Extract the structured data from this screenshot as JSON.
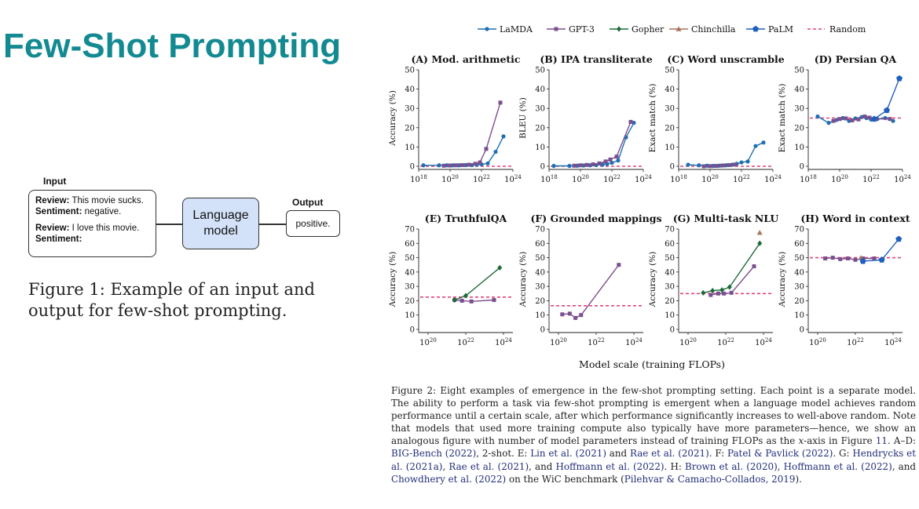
{
  "slide": {
    "title": "Few-Shot Prompting"
  },
  "diagram": {
    "input_label": "Input",
    "output_label": "Output",
    "review_key": "Review:",
    "sentiment_key": "Sentiment:",
    "review1": " This movie sucks.",
    "sentiment1": " negative.",
    "review2": " I love this movie.",
    "sentiment2": "",
    "model_line1": "Language",
    "model_line2": "model",
    "output_value": "positive."
  },
  "figure1_caption": "Figure 1: Example of an input and output for few-shot prompting.",
  "figure2": {
    "xlabel": "Model scale (training FLOPs)",
    "caption_parts": [
      {
        "t": "Figure 2: Eight examples of emergence in the few-shot prompting setting. Each point is a separate model. The ability to perform a task via few-shot prompting is emergent when a language model achieves random performance until a certain scale, after which performance significantly increases to well-above random. Note that models that used more training compute also typically have more parameters—hence, we show an analogous figure with number of model parameters instead of training FLOPs as the "
      },
      {
        "t": "x",
        "i": true
      },
      {
        "t": "-axis in Figure "
      },
      {
        "t": "11",
        "c": true
      },
      {
        "t": ". A–D: "
      },
      {
        "t": "BIG-Bench (2022)",
        "c": true
      },
      {
        "t": ", 2-shot. E: "
      },
      {
        "t": "Lin et al. (2021)",
        "c": true
      },
      {
        "t": " and "
      },
      {
        "t": "Rae et al. (2021)",
        "c": true
      },
      {
        "t": ". F: "
      },
      {
        "t": "Patel & Pavlick (2022)",
        "c": true
      },
      {
        "t": ". G: "
      },
      {
        "t": "Hendrycks et al. (2021a)",
        "c": true
      },
      {
        "t": ", "
      },
      {
        "t": "Rae et al. (2021)",
        "c": true
      },
      {
        "t": ", and "
      },
      {
        "t": "Hoffmann et al. (2022)",
        "c": true
      },
      {
        "t": ". H: "
      },
      {
        "t": "Brown et al. (2020)",
        "c": true
      },
      {
        "t": ", "
      },
      {
        "t": "Hoffmann et al. (2022)",
        "c": true
      },
      {
        "t": ", and "
      },
      {
        "t": "Chowdhery et al. (2022)",
        "c": true
      },
      {
        "t": " on the WiC benchmark ("
      },
      {
        "t": "Pilehvar & Camacho-Collados, 2019",
        "c": true
      },
      {
        "t": ")."
      }
    ]
  },
  "legend": [
    {
      "name": "LaMDA",
      "color": "#1f6fb2",
      "marker": "circle"
    },
    {
      "name": "GPT-3",
      "color": "#7b4f8e",
      "marker": "square"
    },
    {
      "name": "Gopher",
      "color": "#1e6b3a",
      "marker": "diamond"
    },
    {
      "name": "Chinchilla",
      "color": "#a5745a",
      "marker": "triangle"
    },
    {
      "name": "PaLM",
      "color": "#1f5fbf",
      "marker": "pentagon"
    },
    {
      "name": "Random",
      "color": "#e0457b",
      "marker": "dashed"
    }
  ],
  "chart_data": [
    {
      "type": "line",
      "title": "(A) Mod. arithmetic",
      "ylabel": "Accuracy (%)",
      "xlim": [
        18,
        24
      ],
      "ylim": [
        0,
        50
      ],
      "yticks": [
        0,
        10,
        20,
        30,
        40,
        50
      ],
      "xticks": [
        18,
        20,
        22,
        24
      ],
      "random": 0,
      "series": [
        {
          "name": "LaMDA",
          "x": [
            18.3,
            19.3,
            19.8,
            20.2,
            20.6,
            21.0,
            21.4,
            21.7,
            22.0,
            22.4,
            22.9,
            23.4
          ],
          "y": [
            0.5,
            0.5,
            0.5,
            0.5,
            0.5,
            0.6,
            0.6,
            0.8,
            1.0,
            1.5,
            7.5,
            15.5
          ]
        },
        {
          "name": "GPT-3",
          "x": [
            19.6,
            20.0,
            20.4,
            20.8,
            21.2,
            21.6,
            21.9,
            22.3,
            23.2
          ],
          "y": [
            0.3,
            0.4,
            0.5,
            0.6,
            0.8,
            1.3,
            2.0,
            9.0,
            33.0
          ]
        }
      ]
    },
    {
      "type": "line",
      "title": "(B) IPA transliterate",
      "ylabel": "BLEU (%)",
      "xlim": [
        18,
        24
      ],
      "ylim": [
        0,
        50
      ],
      "yticks": [
        0,
        10,
        20,
        30,
        40,
        50
      ],
      "xticks": [
        18,
        20,
        22,
        24
      ],
      "random": 0,
      "series": [
        {
          "name": "LaMDA",
          "x": [
            18.3,
            19.3,
            19.8,
            20.2,
            20.6,
            21.0,
            21.4,
            21.7,
            22.0,
            22.4,
            22.9,
            23.4
          ],
          "y": [
            0.2,
            0.2,
            0.3,
            0.4,
            0.5,
            0.6,
            0.8,
            1.2,
            1.8,
            3.0,
            15.0,
            22.5
          ]
        },
        {
          "name": "GPT-3",
          "x": [
            19.6,
            20.0,
            20.4,
            20.8,
            21.2,
            21.6,
            21.9,
            22.3,
            23.2
          ],
          "y": [
            0.3,
            0.5,
            0.7,
            1.0,
            1.5,
            2.5,
            3.5,
            5.0,
            23.0
          ]
        }
      ]
    },
    {
      "type": "line",
      "title": "(C) Word unscramble",
      "ylabel": "Exact match (%)",
      "xlim": [
        18,
        24
      ],
      "ylim": [
        0,
        50
      ],
      "yticks": [
        0,
        10,
        20,
        30,
        40,
        50
      ],
      "xticks": [
        18,
        20,
        22,
        24
      ],
      "random": 0,
      "series": [
        {
          "name": "LaMDA",
          "x": [
            18.6,
            19.3,
            19.8,
            20.2,
            20.6,
            21.0,
            21.4,
            21.7,
            22.0,
            22.4,
            22.9,
            23.4
          ],
          "y": [
            0.8,
            0.5,
            0.3,
            0.2,
            0.3,
            0.5,
            0.8,
            1.3,
            2.0,
            2.5,
            10.5,
            12.3
          ]
        },
        {
          "name": "GPT-3",
          "x": [
            19.6,
            20.0,
            20.4,
            20.8,
            21.2,
            21.6
          ],
          "y": [
            0.0,
            0.1,
            0.2,
            0.4,
            0.6,
            0.9
          ]
        }
      ]
    },
    {
      "type": "line",
      "title": "(D) Persian QA",
      "ylabel": "Exact match (%)",
      "xlim": [
        18,
        24
      ],
      "ylim": [
        0,
        50
      ],
      "yticks": [
        0,
        10,
        20,
        30,
        40,
        50
      ],
      "xticks": [
        18,
        20,
        22,
        24
      ],
      "random": 25,
      "series": [
        {
          "name": "LaMDA",
          "x": [
            18.6,
            19.3,
            19.8,
            20.2,
            20.6,
            21.0,
            21.4,
            21.7,
            22.0,
            22.4,
            22.9,
            23.4
          ],
          "y": [
            25.8,
            22.5,
            24.0,
            25.0,
            23.5,
            24.8,
            25.5,
            25.0,
            24.2,
            24.5,
            25.0,
            23.5
          ]
        },
        {
          "name": "GPT-3",
          "x": [
            19.6,
            20.0,
            20.4,
            20.8,
            21.2,
            21.6,
            21.9,
            22.3,
            23.2
          ],
          "y": [
            23.5,
            24.5,
            24.8,
            23.8,
            24.3,
            25.8,
            25.2,
            24.5,
            24.5
          ]
        },
        {
          "name": "PaLM",
          "x": [
            22.2,
            23.0,
            23.8
          ],
          "y": [
            24.5,
            29.0,
            45.5
          ]
        }
      ]
    },
    {
      "type": "line",
      "title": "(E) TruthfulQA",
      "ylabel": "Accuracy (%)",
      "xlim": [
        19.5,
        24.5
      ],
      "ylim": [
        0,
        70
      ],
      "yticks": [
        0,
        10,
        20,
        30,
        40,
        50,
        60,
        70
      ],
      "xticks": [
        20,
        22,
        24
      ],
      "random": 22.5,
      "series": [
        {
          "name": "GPT-3",
          "x": [
            21.4,
            21.8,
            22.3,
            23.5
          ],
          "y": [
            20.5,
            20.0,
            19.5,
            20.5
          ]
        },
        {
          "name": "Gopher",
          "x": [
            21.4,
            22.0,
            23.8
          ],
          "y": [
            20.5,
            23.5,
            43.0
          ]
        }
      ]
    },
    {
      "type": "line",
      "title": "(F) Grounded mappings",
      "ylabel": "Accuracy (%)",
      "xlim": [
        19.5,
        24.5
      ],
      "ylim": [
        0,
        70
      ],
      "yticks": [
        0,
        10,
        20,
        30,
        40,
        50,
        60,
        70
      ],
      "xticks": [
        20,
        22,
        24
      ],
      "random": 16.5,
      "series": [
        {
          "name": "GPT-3",
          "x": [
            20.2,
            20.6,
            20.9,
            21.2,
            23.2
          ],
          "y": [
            10.5,
            11.0,
            8.0,
            10.0,
            45.0
          ]
        }
      ]
    },
    {
      "type": "line",
      "title": "(G) Multi-task NLU",
      "ylabel": "Accuracy (%)",
      "xlim": [
        19.5,
        24.5
      ],
      "ylim": [
        0,
        70
      ],
      "yticks": [
        0,
        10,
        20,
        30,
        40,
        50,
        60,
        70
      ],
      "xticks": [
        20,
        22,
        24
      ],
      "random": 25,
      "series": [
        {
          "name": "GPT-3",
          "x": [
            21.2,
            21.6,
            21.9,
            22.3,
            23.5
          ],
          "y": [
            24.0,
            25.0,
            25.0,
            25.5,
            44.0
          ]
        },
        {
          "name": "Gopher",
          "x": [
            20.8,
            21.3,
            21.8,
            22.2,
            23.8
          ],
          "y": [
            25.5,
            27.0,
            27.5,
            29.5,
            60.0
          ]
        },
        {
          "name": "Chinchilla",
          "x": [
            23.8
          ],
          "y": [
            67.5
          ]
        }
      ]
    },
    {
      "type": "line",
      "title": "(H) Word in context",
      "ylabel": "Accuracy (%)",
      "xlim": [
        19.5,
        24.5
      ],
      "ylim": [
        0,
        70
      ],
      "yticks": [
        0,
        10,
        20,
        30,
        40,
        50,
        60,
        70
      ],
      "xticks": [
        20,
        22,
        24
      ],
      "random": 50,
      "series": [
        {
          "name": "GPT-3",
          "x": [
            20.4,
            20.8,
            21.2,
            21.6,
            22.0,
            22.4,
            23.0
          ],
          "y": [
            49.5,
            50.0,
            49.0,
            49.5,
            48.5,
            49.5,
            49.5
          ]
        },
        {
          "name": "Chinchilla",
          "x": [
            22.3
          ],
          "y": [
            50.0
          ]
        },
        {
          "name": "PaLM",
          "x": [
            22.4,
            23.4,
            24.3
          ],
          "y": [
            47.5,
            48.5,
            63.0
          ]
        }
      ]
    }
  ]
}
